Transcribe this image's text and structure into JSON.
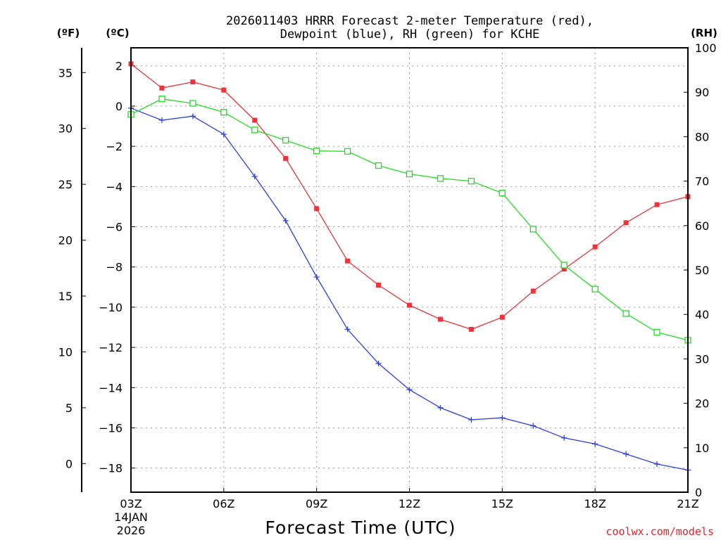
{
  "chart_data": {
    "type": "line",
    "title_line1": "2026011403 HRRR Forecast 2-meter Temperature (red),",
    "title_line2": "Dewpoint (blue), RH (green) for KCHE",
    "xlabel": "Forecast Time (UTC)",
    "x_start_date": [
      "14JAN",
      "2026"
    ],
    "x_tick_labels": [
      "03Z",
      "06Z",
      "09Z",
      "12Z",
      "15Z",
      "18Z",
      "21Z"
    ],
    "x_tick_hours": [
      3,
      6,
      9,
      12,
      15,
      18,
      21
    ],
    "xlim": [
      3,
      21
    ],
    "unit_f": "(ºF)",
    "unit_c": "(ºC)",
    "unit_rh": "(RH)",
    "ylim_c": [
      -19.2,
      2.9
    ],
    "ylim_rh": [
      0,
      100
    ],
    "yticks_c": [
      2,
      0,
      -2,
      -4,
      -6,
      -8,
      -10,
      -12,
      -14,
      -16,
      -18
    ],
    "yticks_f": [
      35,
      30,
      25,
      20,
      15,
      10,
      5,
      0
    ],
    "yticks_rh": [
      100,
      90,
      80,
      70,
      60,
      50,
      40,
      30,
      20,
      10,
      0
    ],
    "hours": [
      3,
      4,
      5,
      6,
      7,
      8,
      9,
      10,
      11,
      12,
      13,
      14,
      15,
      16,
      17,
      18,
      19,
      20,
      21
    ],
    "series": [
      {
        "name": "Temperature",
        "axis": "c",
        "color": "#e8343a",
        "marker": "filled-square",
        "values": [
          2.1,
          0.9,
          1.2,
          0.8,
          -0.7,
          -2.6,
          -5.1,
          -7.7,
          -8.9,
          -9.9,
          -10.6,
          -11.1,
          -10.5,
          -9.2,
          -8.1,
          -7.0,
          -5.8,
          -4.9,
          -4.5
        ]
      },
      {
        "name": "Dewpoint",
        "axis": "c",
        "color": "#2b3ee8",
        "marker": "plus",
        "values": [
          -0.1,
          -0.7,
          -0.5,
          -1.4,
          -3.5,
          -5.7,
          -8.5,
          -11.1,
          -12.8,
          -14.1,
          -15.0,
          -15.6,
          -15.5,
          -15.9,
          -16.5,
          -16.8,
          -17.3,
          -17.8,
          -18.1
        ]
      },
      {
        "name": "RH",
        "axis": "rh",
        "color": "#22dd22",
        "marker": "open-square",
        "values": [
          85.0,
          88.5,
          87.5,
          85.5,
          81.5,
          79.2,
          76.8,
          76.7,
          73.5,
          71.6,
          70.6,
          70.0,
          67.3,
          59.2,
          51.1,
          45.7,
          40.2,
          36.0,
          34.2
        ]
      }
    ]
  },
  "credit": "coolwx.com/models"
}
